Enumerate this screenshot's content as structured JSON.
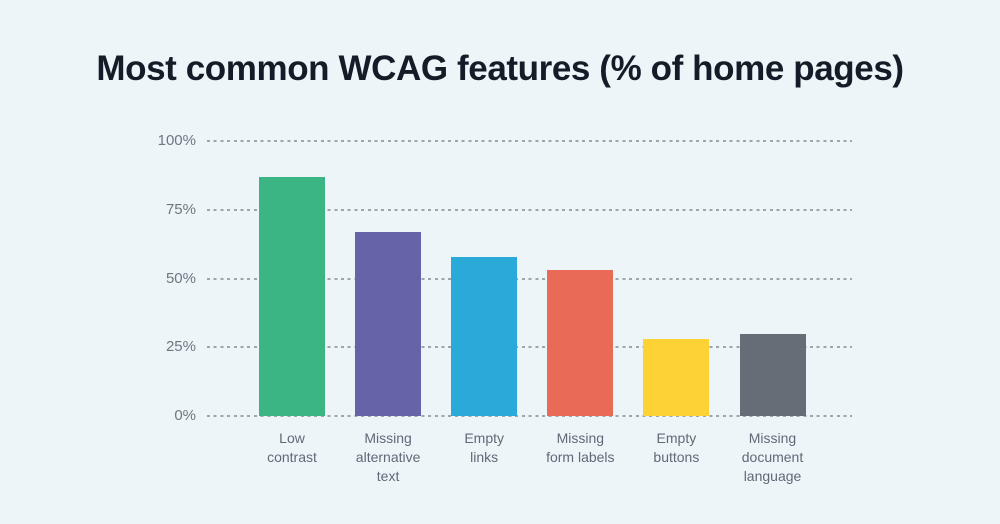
{
  "title": "Most common WCAG features (% of home pages)",
  "colors": {
    "background": "#edf5f9",
    "title_text": "#131c27",
    "gridline": "#9ea5ac",
    "y_tick_text": "#6e7680",
    "x_tick_text": "#5f6a76"
  },
  "chart_data": {
    "type": "bar",
    "title": "Most common WCAG features (% of home pages)",
    "categories": [
      "Low contrast",
      "Missing alternative text",
      "Empty links",
      "Missing form labels",
      "Empty buttons",
      "Missing document language"
    ],
    "category_label_lines": [
      "Low\ncontrast",
      "Missing\nalternative\ntext",
      "Empty\nlinks",
      "Missing\nform labels",
      "Empty\nbuttons",
      "Missing\ndocument\nlanguage"
    ],
    "values": [
      87,
      67,
      58,
      53,
      28,
      30
    ],
    "bar_colors": [
      "#3cb585",
      "#6663a8",
      "#29aad8",
      "#e96b57",
      "#fdd235",
      "#666d76"
    ],
    "y_ticks": [
      "100%",
      "75%",
      "50%",
      "25%",
      "0%"
    ],
    "y_tick_values": [
      100,
      75,
      50,
      25,
      0
    ],
    "ylim": [
      0,
      100
    ],
    "xlabel": "",
    "ylabel": "",
    "grid": "horizontal-dashed",
    "legend": "none"
  }
}
